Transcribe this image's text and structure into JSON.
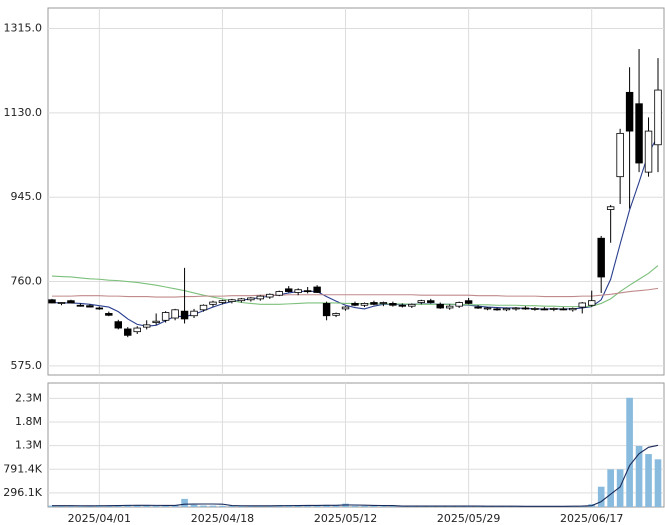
{
  "chart_data": [
    {
      "type": "candlestick",
      "open": [
        720,
        712,
        718,
        708,
        707,
        702,
        690,
        672,
        656,
        650,
        660,
        670,
        675,
        680,
        695,
        685,
        698,
        710,
        714,
        716,
        718,
        720,
        722,
        726,
        730,
        744,
        736,
        740,
        748,
        712,
        686,
        700,
        712,
        708,
        714,
        712,
        712,
        708,
        706,
        714,
        718,
        710,
        702,
        706,
        718,
        704,
        700,
        700,
        698,
        700,
        702,
        700,
        700,
        699,
        700,
        698,
        704,
        708,
        855,
        918,
        990,
        1175,
        1150,
        1000,
        1060
      ],
      "high": [
        722,
        715,
        720,
        712,
        710,
        705,
        694,
        676,
        660,
        662,
        675,
        690,
        695,
        700,
        790,
        700,
        710,
        718,
        720,
        722,
        724,
        726,
        730,
        734,
        740,
        750,
        745,
        748,
        752,
        716,
        692,
        706,
        716,
        714,
        718,
        716,
        716,
        712,
        712,
        720,
        722,
        714,
        710,
        716,
        724,
        708,
        704,
        703,
        703,
        704,
        706,
        704,
        704,
        703,
        704,
        703,
        715,
        740,
        860,
        928,
        1095,
        1230,
        1270,
        1120,
        1250
      ],
      "low": [
        712,
        708,
        712,
        705,
        703,
        698,
        684,
        655,
        638,
        645,
        655,
        665,
        670,
        675,
        668,
        680,
        694,
        705,
        710,
        712,
        714,
        716,
        718,
        722,
        728,
        736,
        730,
        734,
        735,
        675,
        682,
        696,
        706,
        704,
        708,
        706,
        705,
        703,
        702,
        710,
        712,
        700,
        698,
        702,
        710,
        700,
        697,
        696,
        695,
        696,
        698,
        696,
        697,
        695,
        697,
        694,
        690,
        705,
        735,
        845,
        930,
        920,
        1000,
        990,
        1000
      ],
      "close": [
        713,
        714,
        713,
        706,
        704,
        700,
        686,
        658,
        642,
        658,
        665,
        673,
        692,
        698,
        678,
        695,
        708,
        715,
        718,
        720,
        722,
        724,
        728,
        732,
        738,
        738,
        742,
        738,
        736,
        685,
        690,
        704,
        708,
        712,
        710,
        714,
        708,
        706,
        710,
        718,
        714,
        702,
        706,
        714,
        712,
        702,
        702,
        698,
        701,
        702,
        700,
        701,
        699,
        701,
        698,
        701,
        713,
        718,
        770,
        924,
        1085,
        1090,
        1020,
        1090,
        1180
      ],
      "up_color": "#ffffff",
      "down_color": "#000000",
      "lines": [
        {
          "color": "#2a3f8f",
          "values": [
            714,
            713,
            713,
            712,
            710,
            707,
            704,
            694,
            678,
            666,
            662,
            664,
            674,
            684,
            683,
            688,
            696,
            704,
            711,
            716,
            719,
            722,
            725,
            728,
            731,
            735,
            738,
            739,
            738,
            727,
            717,
            708,
            703,
            700,
            706,
            710,
            710,
            710,
            710,
            711,
            711,
            710,
            710,
            709,
            708,
            706,
            704,
            703,
            702,
            702,
            701,
            700,
            700,
            700,
            700,
            700,
            702,
            705,
            720,
            765,
            842,
            917,
            978,
            1042,
            1079
          ]
        },
        {
          "color": "#7cc07c",
          "values": [
            772,
            771,
            770,
            768,
            766,
            765,
            763,
            762,
            760,
            758,
            755,
            752,
            748,
            744,
            740,
            735,
            730,
            726,
            722,
            718,
            714,
            712,
            710,
            710,
            710,
            711,
            712,
            713,
            713,
            713,
            713,
            712,
            712,
            711,
            711,
            711,
            711,
            711,
            710,
            710,
            710,
            710,
            710,
            710,
            709,
            709,
            709,
            708,
            708,
            708,
            707,
            707,
            706,
            706,
            705,
            705,
            705,
            706,
            712,
            722,
            738,
            752,
            765,
            778,
            795
          ]
        },
        {
          "color": "#c08a8a",
          "values": [
            728,
            728,
            728,
            729,
            729,
            729,
            728,
            728,
            727,
            727,
            727,
            726,
            726,
            726,
            727,
            727,
            728,
            728,
            728,
            729,
            729,
            729,
            730,
            730,
            730,
            731,
            731,
            731,
            731,
            731,
            731,
            731,
            731,
            731,
            731,
            731,
            731,
            731,
            731,
            730,
            730,
            730,
            730,
            730,
            730,
            729,
            729,
            729,
            728,
            728,
            728,
            728,
            727,
            727,
            727,
            727,
            728,
            728,
            730,
            732,
            735,
            738,
            740,
            742,
            745
          ]
        }
      ],
      "ylim": [
        555,
        1360
      ],
      "yticks": [
        {
          "value": 1315,
          "label": "1315.0"
        },
        {
          "value": 1130,
          "label": "1130.0"
        },
        {
          "value": 945,
          "label": "945.0"
        },
        {
          "value": 760,
          "label": "760.0"
        },
        {
          "value": 575,
          "label": "575.0"
        }
      ],
      "grid": true
    },
    {
      "type": "bar",
      "categories": [
        null,
        null,
        null,
        null,
        null,
        "2025/04/01",
        null,
        null,
        null,
        null,
        null,
        null,
        null,
        null,
        null,
        null,
        null,
        null,
        "2025/04/18",
        null,
        null,
        null,
        null,
        null,
        null,
        null,
        null,
        null,
        null,
        null,
        null,
        "2025/05/12",
        null,
        null,
        null,
        null,
        null,
        null,
        null,
        null,
        null,
        null,
        null,
        null,
        "2025/05/29",
        null,
        null,
        null,
        null,
        null,
        null,
        null,
        null,
        null,
        null,
        null,
        null,
        "2025/06/17",
        null,
        null,
        null,
        null,
        null,
        null,
        null
      ],
      "values": [
        30000,
        25000,
        20000,
        28000,
        22000,
        35000,
        30000,
        40000,
        45000,
        30000,
        28000,
        25000,
        32000,
        40000,
        170000,
        45000,
        30000,
        28000,
        25000,
        22000,
        24000,
        26000,
        25000,
        30000,
        28000,
        35000,
        30000,
        32000,
        38000,
        45000,
        30000,
        70000,
        25000,
        22000,
        20000,
        18000,
        20000,
        22000,
        18000,
        20000,
        22000,
        20000,
        18000,
        20000,
        22000,
        18000,
        16000,
        15000,
        15000,
        16000,
        15000,
        14000,
        15000,
        16000,
        15000,
        18000,
        30000,
        60000,
        425000,
        790000,
        790000,
        2290000,
        1280000,
        1110000,
        1000000
      ],
      "color": "#88bbdd",
      "lines": [
        {
          "color": "#1a2a5a",
          "values": [
            28000,
            28000,
            27000,
            26000,
            25000,
            26000,
            27000,
            31000,
            34000,
            36000,
            35000,
            34000,
            32000,
            33000,
            59000,
            62000,
            63000,
            63000,
            60000,
            30000,
            26000,
            25000,
            24000,
            25000,
            27000,
            29000,
            30000,
            32000,
            33000,
            36000,
            35000,
            43000,
            42000,
            38000,
            33000,
            31000,
            31000,
            20000,
            20000,
            20000,
            20000,
            20000,
            20000,
            20000,
            20000,
            19000,
            18000,
            18000,
            17000,
            16000,
            15000,
            15000,
            15000,
            15000,
            15000,
            16000,
            19000,
            28000,
            113000,
            268000,
            421000,
            870000,
            1118000,
            1252000,
            1294000
          ]
        }
      ],
      "ylim": [
        0,
        2600000
      ],
      "yticks": [
        {
          "value": 2277300,
          "label": "2.3M"
        },
        {
          "value": 1782000,
          "label": "1.8M"
        },
        {
          "value": 1286700,
          "label": "1.3M"
        },
        {
          "value": 791400,
          "label": "791.4K"
        },
        {
          "value": 296100,
          "label": "296.1K"
        }
      ],
      "grid": true
    }
  ]
}
